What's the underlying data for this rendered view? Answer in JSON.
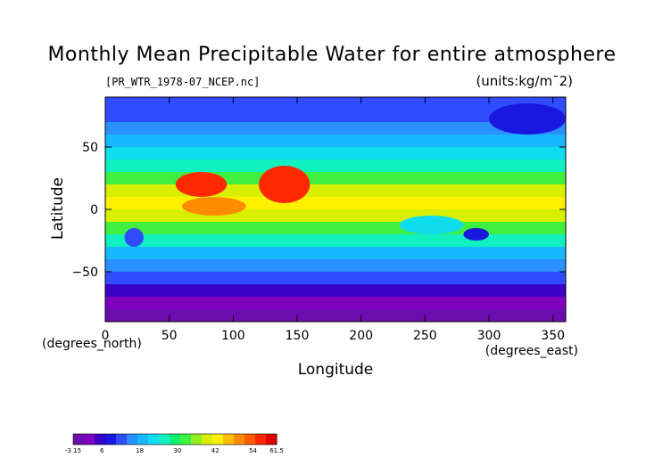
{
  "chart_data": {
    "type": "heatmap",
    "title": "Monthly Mean Precipitable Water for entire atmosphere",
    "subtitle": "[PR_WTR_1978-07_NCEP.nc]",
    "units": "(units:kg/m¯2)",
    "xlabel": "Longitude",
    "ylabel": "Latitude",
    "xunit": "(degrees_east)",
    "yunit": "(degrees_north)",
    "xlim": [
      0,
      360
    ],
    "ylim": [
      -90,
      90
    ],
    "xticks": [
      0,
      50,
      100,
      150,
      200,
      250,
      300,
      350
    ],
    "yticks": [
      -50,
      0,
      50
    ],
    "xtick_labels": [
      "0",
      "50",
      "100",
      "150",
      "200",
      "250",
      "300",
      "350"
    ],
    "ytick_labels": [
      "−50",
      "0",
      "50"
    ],
    "latitude_bands": [
      {
        "lat": -85,
        "value": -1
      },
      {
        "lat": -75,
        "value": 3
      },
      {
        "lat": -65,
        "value": 6
      },
      {
        "lat": -55,
        "value": 11
      },
      {
        "lat": -45,
        "value": 15
      },
      {
        "lat": -35,
        "value": 19
      },
      {
        "lat": -25,
        "value": 26
      },
      {
        "lat": -15,
        "value": 32
      },
      {
        "lat": -5,
        "value": 38
      },
      {
        "lat": 5,
        "value": 44
      },
      {
        "lat": 15,
        "value": 40
      },
      {
        "lat": 25,
        "value": 33
      },
      {
        "lat": 35,
        "value": 27
      },
      {
        "lat": 45,
        "value": 22
      },
      {
        "lat": 55,
        "value": 19
      },
      {
        "lat": 65,
        "value": 16
      },
      {
        "lat": 75,
        "value": 13
      },
      {
        "lat": 85,
        "value": 12
      }
    ],
    "features": [
      {
        "lon": [
          55,
          95
        ],
        "lat": [
          10,
          30
        ],
        "value": 58
      },
      {
        "lon": [
          120,
          160
        ],
        "lat": [
          5,
          35
        ],
        "value": 56
      },
      {
        "lon": [
          60,
          110
        ],
        "lat": [
          -5,
          10
        ],
        "value": 48
      },
      {
        "lon": [
          280,
          300
        ],
        "lat": [
          -25,
          -15
        ],
        "value": 8
      },
      {
        "lon": [
          15,
          30
        ],
        "lat": [
          -30,
          -15
        ],
        "value": 12
      },
      {
        "lon": [
          230,
          280
        ],
        "lat": [
          -20,
          -5
        ],
        "value": 22
      },
      {
        "lon": [
          300,
          360
        ],
        "lat": [
          60,
          85
        ],
        "value": 8
      }
    ],
    "colorbar": {
      "min": -3.15,
      "max": 61.5,
      "tick_labels": [
        "-3.15",
        "6",
        "18",
        "30",
        "42",
        "54",
        "61.5"
      ],
      "tick_values": [
        -3.15,
        6,
        18,
        30,
        42,
        54,
        61.5
      ],
      "colors": [
        "#6a0dad",
        "#8000c0",
        "#3a00c8",
        "#1818e0",
        "#2f4cff",
        "#2a90ff",
        "#18b8ff",
        "#10dcf0",
        "#10f0c0",
        "#10f070",
        "#40f040",
        "#90f020",
        "#d8f000",
        "#fff000",
        "#ffc000",
        "#ff8c00",
        "#ff5a00",
        "#ff2800",
        "#e00000"
      ]
    }
  }
}
